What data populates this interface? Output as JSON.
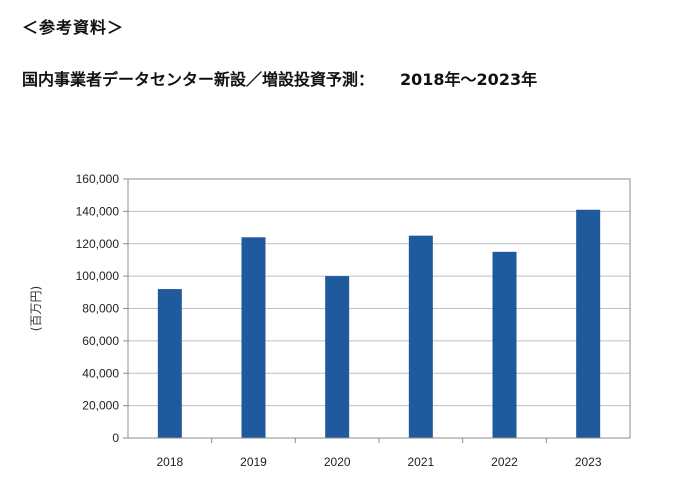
{
  "header": {
    "note": "＜参考資料＞",
    "title": "国内事業者データセンター新設／増設投資予測：",
    "title_range": "2018年～2023年"
  },
  "chart_data": {
    "type": "bar",
    "title": "国内事業者データセンター新設／増設投資予測：　2018年～2023年",
    "xlabel": "",
    "ylabel": "(百万円)",
    "categories": [
      "2018",
      "2019",
      "2020",
      "2021",
      "2022",
      "2023"
    ],
    "values": [
      92000,
      124000,
      100000,
      125000,
      115000,
      141000
    ],
    "ylim": [
      0,
      160000
    ],
    "yticks": [
      0,
      20000,
      40000,
      60000,
      80000,
      100000,
      120000,
      140000,
      160000
    ],
    "ytick_labels": [
      "0",
      "20,000",
      "40,000",
      "60,000",
      "80,000",
      "100,000",
      "120,000",
      "140,000",
      "160,000"
    ],
    "grid": true,
    "legend": "none",
    "bar_color": "#1f5a9c",
    "grid_color": "#bfbfbf",
    "axis_color": "#8c8c8c"
  }
}
